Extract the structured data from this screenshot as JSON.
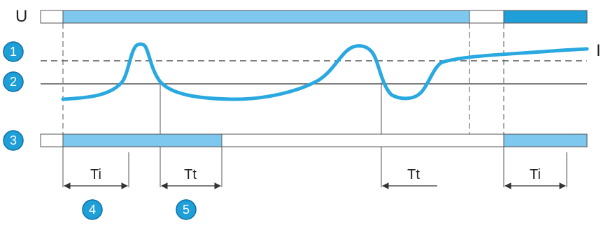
{
  "labels": {
    "supply": "U",
    "current": "I",
    "ti_1": "Ti",
    "tt_1": "Tt",
    "tt_2": "Tt",
    "ti_2": "Ti"
  },
  "markers": {
    "m1": "1",
    "m2": "2",
    "m3": "3",
    "m4": "4",
    "m5": "5"
  },
  "colors": {
    "bar_light": "#7ec8ef",
    "bar_dark": "#1e9fd8",
    "curve": "#29a9e0",
    "marker_fill": "#1e9fd8",
    "line": "#555555"
  }
}
